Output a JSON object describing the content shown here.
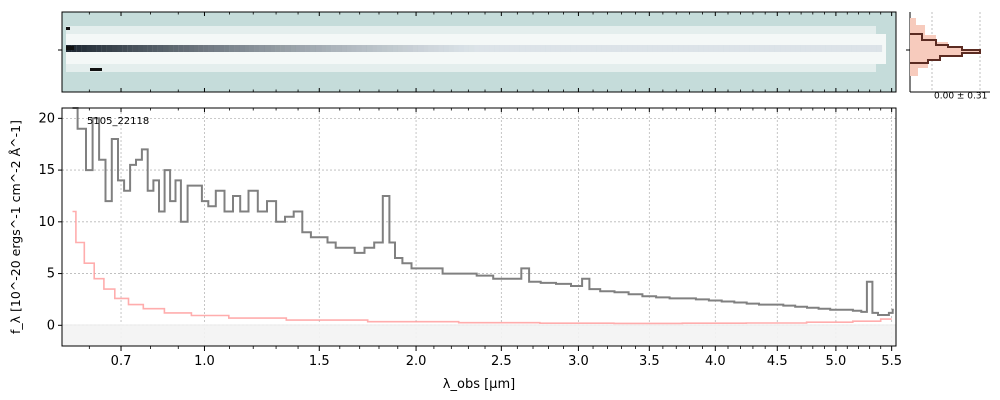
{
  "chart_data": {
    "type": "line",
    "object_label": "5105_22118",
    "xlabel": "λ_obs [μm]",
    "ylabel": "f_λ [10^-20 ergs^-1 cm^-2 Å^-1]",
    "xlim": [
      0.52,
      5.54
    ],
    "ylim": [
      -2,
      21
    ],
    "x_scale": "sqrt",
    "x_tick_labels": [
      "0.7",
      "1.0",
      "1.5",
      "2.0",
      "2.5",
      "3.0",
      "3.5",
      "4.0",
      "4.5",
      "5.0",
      "5.5"
    ],
    "x_ticks": [
      0.7,
      1.0,
      1.5,
      2.0,
      2.5,
      3.0,
      3.5,
      4.0,
      4.5,
      5.0,
      5.5
    ],
    "y_ticks": [
      0,
      5,
      10,
      15,
      20
    ],
    "y_tick_labels": [
      "0",
      "5",
      "10",
      "15",
      "20"
    ],
    "grid": true,
    "series": [
      {
        "role": "flux",
        "color": "#808080",
        "x": [
          0.55,
          0.58,
          0.6,
          0.62,
          0.64,
          0.66,
          0.68,
          0.7,
          0.72,
          0.74,
          0.76,
          0.78,
          0.8,
          0.82,
          0.84,
          0.86,
          0.88,
          0.9,
          0.92,
          0.95,
          0.98,
          1.0,
          1.03,
          1.06,
          1.1,
          1.13,
          1.16,
          1.2,
          1.24,
          1.28,
          1.32,
          1.36,
          1.4,
          1.44,
          1.48,
          1.52,
          1.56,
          1.6,
          1.65,
          1.7,
          1.75,
          1.8,
          1.84,
          1.87,
          1.9,
          1.95,
          2.0,
          2.1,
          2.2,
          2.3,
          2.4,
          2.5,
          2.6,
          2.65,
          2.7,
          2.8,
          2.9,
          3.0,
          3.05,
          3.1,
          3.2,
          3.3,
          3.4,
          3.5,
          3.6,
          3.7,
          3.8,
          3.9,
          4.0,
          4.1,
          4.2,
          4.3,
          4.4,
          4.5,
          4.6,
          4.7,
          4.8,
          4.9,
          5.0,
          5.1,
          5.2,
          5.25,
          5.3,
          5.35,
          5.4,
          5.45,
          5.5,
          5.52
        ],
        "y": [
          21,
          19,
          15,
          20,
          16,
          12,
          18,
          14,
          13,
          15.5,
          16,
          17,
          13,
          14,
          11,
          15,
          12,
          14,
          10,
          13.5,
          13.5,
          12,
          11.5,
          13,
          11,
          12.5,
          11,
          13,
          11,
          12,
          10,
          10.5,
          11,
          9,
          8.5,
          8.5,
          8,
          7.5,
          7.5,
          7,
          7.5,
          8,
          12.5,
          8,
          6.5,
          6,
          5.5,
          5.5,
          5,
          5,
          4.8,
          4.5,
          4.5,
          5.5,
          4.2,
          4.1,
          4,
          3.8,
          4.5,
          3.5,
          3.3,
          3.2,
          3,
          2.8,
          2.7,
          2.6,
          2.6,
          2.5,
          2.4,
          2.3,
          2.2,
          2.1,
          2,
          2,
          1.9,
          1.8,
          1.7,
          1.6,
          1.5,
          1.5,
          1.4,
          1.3,
          4.2,
          1.2,
          1,
          1,
          1.2,
          1.5
        ]
      },
      {
        "role": "error",
        "color": "#ff9999",
        "x": [
          0.55,
          0.57,
          0.6,
          0.63,
          0.66,
          0.7,
          0.75,
          0.8,
          0.9,
          1.0,
          1.2,
          1.5,
          2.0,
          2.5,
          3.0,
          3.5,
          4.0,
          4.5,
          5.0,
          5.3,
          5.5
        ],
        "y": [
          11,
          8,
          6,
          4.5,
          3.5,
          2.6,
          2,
          1.6,
          1.2,
          0.95,
          0.7,
          0.5,
          0.35,
          0.25,
          0.2,
          0.18,
          0.2,
          0.22,
          0.3,
          0.4,
          0.6
        ]
      }
    ],
    "top_panel": {
      "type": "heatmap",
      "description_colors": [
        "#c2dcd9",
        "#ffffff",
        "#1a1a2e"
      ]
    },
    "side_panel": {
      "type": "histogram",
      "annotation": "0.00 ± 0.31",
      "colors": [
        "#5b2b22",
        "#f6c6b8"
      ]
    }
  }
}
